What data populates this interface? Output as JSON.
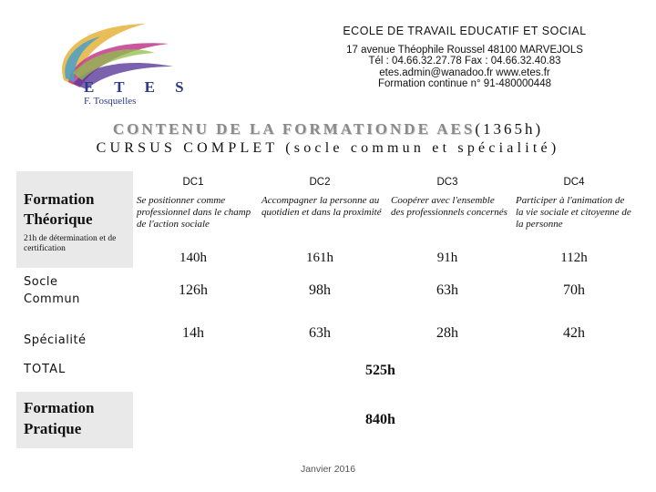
{
  "logo": {
    "name": "E T E S",
    "subtitle": "F. Tosquelles"
  },
  "school": {
    "name": "ECOLE DE TRAVAIL EDUCATIF ET SOCIAL",
    "address": "17 avenue Théophile Roussel  48100 MARVEJOLS",
    "phone": "Tél : 04.66.32.27.78   Fax : 04.66.32.40.83",
    "web": "etes.admin@wanadoo.fr    www.etes.fr",
    "formation": "Formation continue n° 91-480000448"
  },
  "title": {
    "highlight": "CONTENU DE LA FORMATIONDE AES",
    "hours": "(1365h)",
    "line2": "CURSUS COMPLET (socle commun et spécialité)"
  },
  "rows": {
    "formation_theorique": "Formation Théorique",
    "note": "21h de détermination et de certification",
    "socle": "Socle Commun",
    "specialite": "Spécialité",
    "total": "TOTAL",
    "formation_pratique": "Formation Pratique"
  },
  "columns": [
    {
      "code": "DC1",
      "desc": "Se positionner comme professionnel dans le champ de l'action sociale",
      "theorique": "140h",
      "socle": "126h",
      "specialite": "14h"
    },
    {
      "code": "DC2",
      "desc": "Accompagner la personne au quotidien et dans la proximité",
      "theorique": "161h",
      "socle": "98h",
      "specialite": "63h"
    },
    {
      "code": "DC3",
      "desc": "Coopérer avec l'ensemble des professionnels concernés",
      "theorique": "91h",
      "socle": "63h",
      "specialite": "28h"
    },
    {
      "code": "DC4",
      "desc": "Participer à l'animation de la vie sociale et citoyenne de la personne",
      "theorique": "112h",
      "socle": "70h",
      "specialite": "42h"
    }
  ],
  "total_hours": "525h",
  "pratique_hours": "840h",
  "footer": "Janvier 2016",
  "colors": {
    "logo_blue": "#2b3a8c",
    "title_highlight": "#8a8a8a",
    "shade": "#e9e9e9"
  }
}
